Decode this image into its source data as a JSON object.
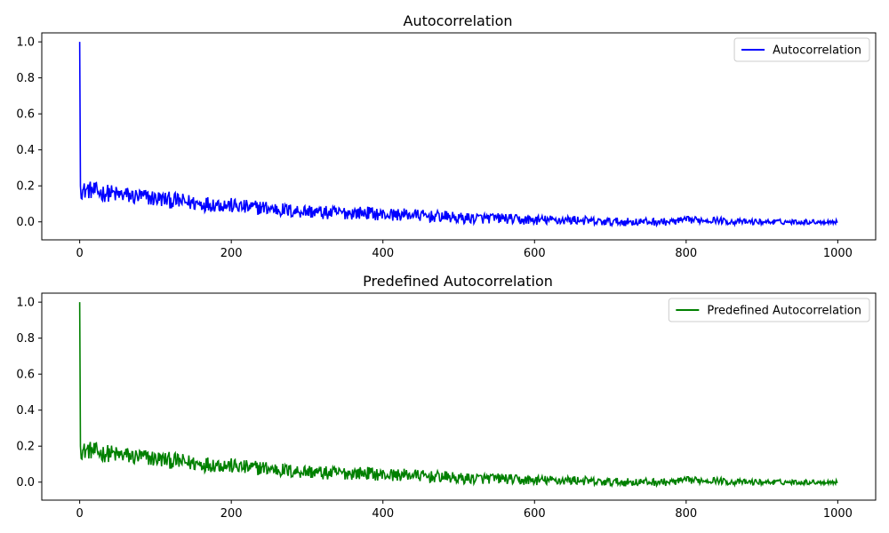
{
  "chart_data": [
    {
      "type": "line",
      "title": "Autocorrelation",
      "xlabel": "",
      "ylabel": "",
      "xlim": [
        -50,
        1050
      ],
      "ylim": [
        -0.1,
        1.05
      ],
      "xticks": [
        0,
        200,
        400,
        600,
        800,
        1000
      ],
      "yticks": [
        0.0,
        0.2,
        0.4,
        0.6,
        0.8,
        1.0
      ],
      "grid": false,
      "legend_position": "top-right",
      "series": [
        {
          "name": "Autocorrelation",
          "color": "#0000ff",
          "x": [
            0,
            1,
            2,
            5,
            10,
            20,
            30,
            40,
            50,
            60,
            70,
            80,
            100,
            120,
            140,
            160,
            180,
            200,
            220,
            240,
            260,
            280,
            300,
            320,
            340,
            360,
            380,
            400,
            420,
            440,
            460,
            480,
            500,
            520,
            540,
            560,
            580,
            600,
            620,
            640,
            660,
            680,
            700,
            720,
            740,
            760,
            780,
            800,
            820,
            840,
            860,
            880,
            900,
            920,
            940,
            960,
            980,
            1000
          ],
          "y": [
            1.0,
            0.2,
            0.18,
            0.17,
            0.18,
            0.17,
            0.16,
            0.16,
            0.15,
            0.15,
            0.14,
            0.14,
            0.13,
            0.12,
            0.11,
            0.1,
            0.1,
            0.09,
            0.08,
            0.08,
            0.07,
            0.06,
            0.06,
            0.05,
            0.05,
            0.05,
            0.05,
            0.04,
            0.04,
            0.04,
            0.03,
            0.03,
            0.02,
            0.02,
            0.02,
            0.02,
            0.01,
            0.01,
            0.01,
            0.01,
            0.01,
            0.0,
            0.0,
            0.0,
            0.0,
            0.0,
            0.0,
            0.01,
            0.01,
            0.01,
            0.0,
            0.0,
            0.0,
            0.0,
            0.0,
            0.0,
            0.0,
            0.0
          ]
        }
      ]
    },
    {
      "type": "line",
      "title": "Predefined Autocorrelation",
      "xlabel": "",
      "ylabel": "",
      "xlim": [
        -50,
        1050
      ],
      "ylim": [
        -0.1,
        1.05
      ],
      "xticks": [
        0,
        200,
        400,
        600,
        800,
        1000
      ],
      "yticks": [
        0.0,
        0.2,
        0.4,
        0.6,
        0.8,
        1.0
      ],
      "grid": false,
      "legend_position": "top-right",
      "series": [
        {
          "name": "Predefined Autocorrelation",
          "color": "#008000",
          "x": [
            0,
            1,
            2,
            5,
            10,
            20,
            30,
            40,
            50,
            60,
            70,
            80,
            100,
            120,
            140,
            160,
            180,
            200,
            220,
            240,
            260,
            280,
            300,
            320,
            340,
            360,
            380,
            400,
            420,
            440,
            460,
            480,
            500,
            520,
            540,
            560,
            580,
            600,
            620,
            640,
            660,
            680,
            700,
            720,
            740,
            760,
            780,
            800,
            820,
            840,
            860,
            880,
            900,
            920,
            940,
            960,
            980,
            1000
          ],
          "y": [
            1.0,
            0.2,
            0.18,
            0.17,
            0.18,
            0.17,
            0.16,
            0.16,
            0.15,
            0.15,
            0.14,
            0.14,
            0.13,
            0.12,
            0.11,
            0.1,
            0.1,
            0.09,
            0.08,
            0.08,
            0.07,
            0.06,
            0.06,
            0.05,
            0.05,
            0.05,
            0.05,
            0.04,
            0.04,
            0.04,
            0.03,
            0.03,
            0.02,
            0.02,
            0.02,
            0.02,
            0.01,
            0.01,
            0.01,
            0.01,
            0.01,
            0.0,
            0.0,
            0.0,
            0.0,
            0.0,
            0.0,
            0.01,
            0.01,
            0.01,
            0.0,
            0.0,
            0.0,
            0.0,
            0.0,
            0.0,
            0.0,
            0.0
          ]
        }
      ]
    }
  ]
}
